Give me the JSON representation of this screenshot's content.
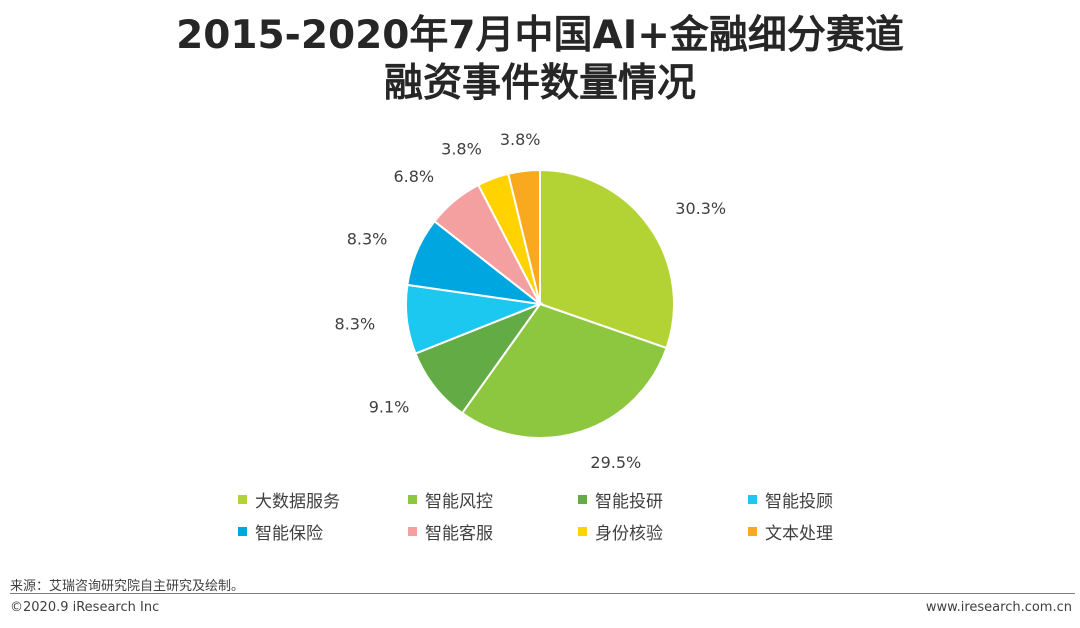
{
  "title": {
    "line1": "2015-2020年7月中国AI+金融细分赛道",
    "line2": "融资事件数量情况"
  },
  "chart_data": {
    "type": "pie",
    "unit": "%",
    "slices": [
      {
        "label": "大数据服务",
        "value": 30.3,
        "display": "30.3%",
        "color": "#b3d335"
      },
      {
        "label": "智能风控",
        "value": 29.5,
        "display": "29.5%",
        "color": "#8dc63f"
      },
      {
        "label": "智能投研",
        "value": 9.1,
        "display": "9.1%",
        "color": "#62ab45"
      },
      {
        "label": "智能投顾",
        "value": 8.3,
        "display": "8.3%",
        "color": "#1cc7f0"
      },
      {
        "label": "智能保险",
        "value": 8.3,
        "display": "8.3%",
        "color": "#00a6e0"
      },
      {
        "label": "智能客服",
        "value": 6.8,
        "display": "6.8%",
        "color": "#f4a0a0"
      },
      {
        "label": "身份核验",
        "value": 3.8,
        "display": "3.8%",
        "color": "#ffd200"
      },
      {
        "label": "文本处理",
        "value": 3.8,
        "display": "3.8%",
        "color": "#f8a91e"
      }
    ],
    "legend_position": "bottom"
  },
  "source_note": "来源：艾瑞咨询研究院自主研究及绘制。",
  "footer": {
    "copyright": "©2020.9 iResearch Inc",
    "website": "www.iresearch.com.cn"
  }
}
